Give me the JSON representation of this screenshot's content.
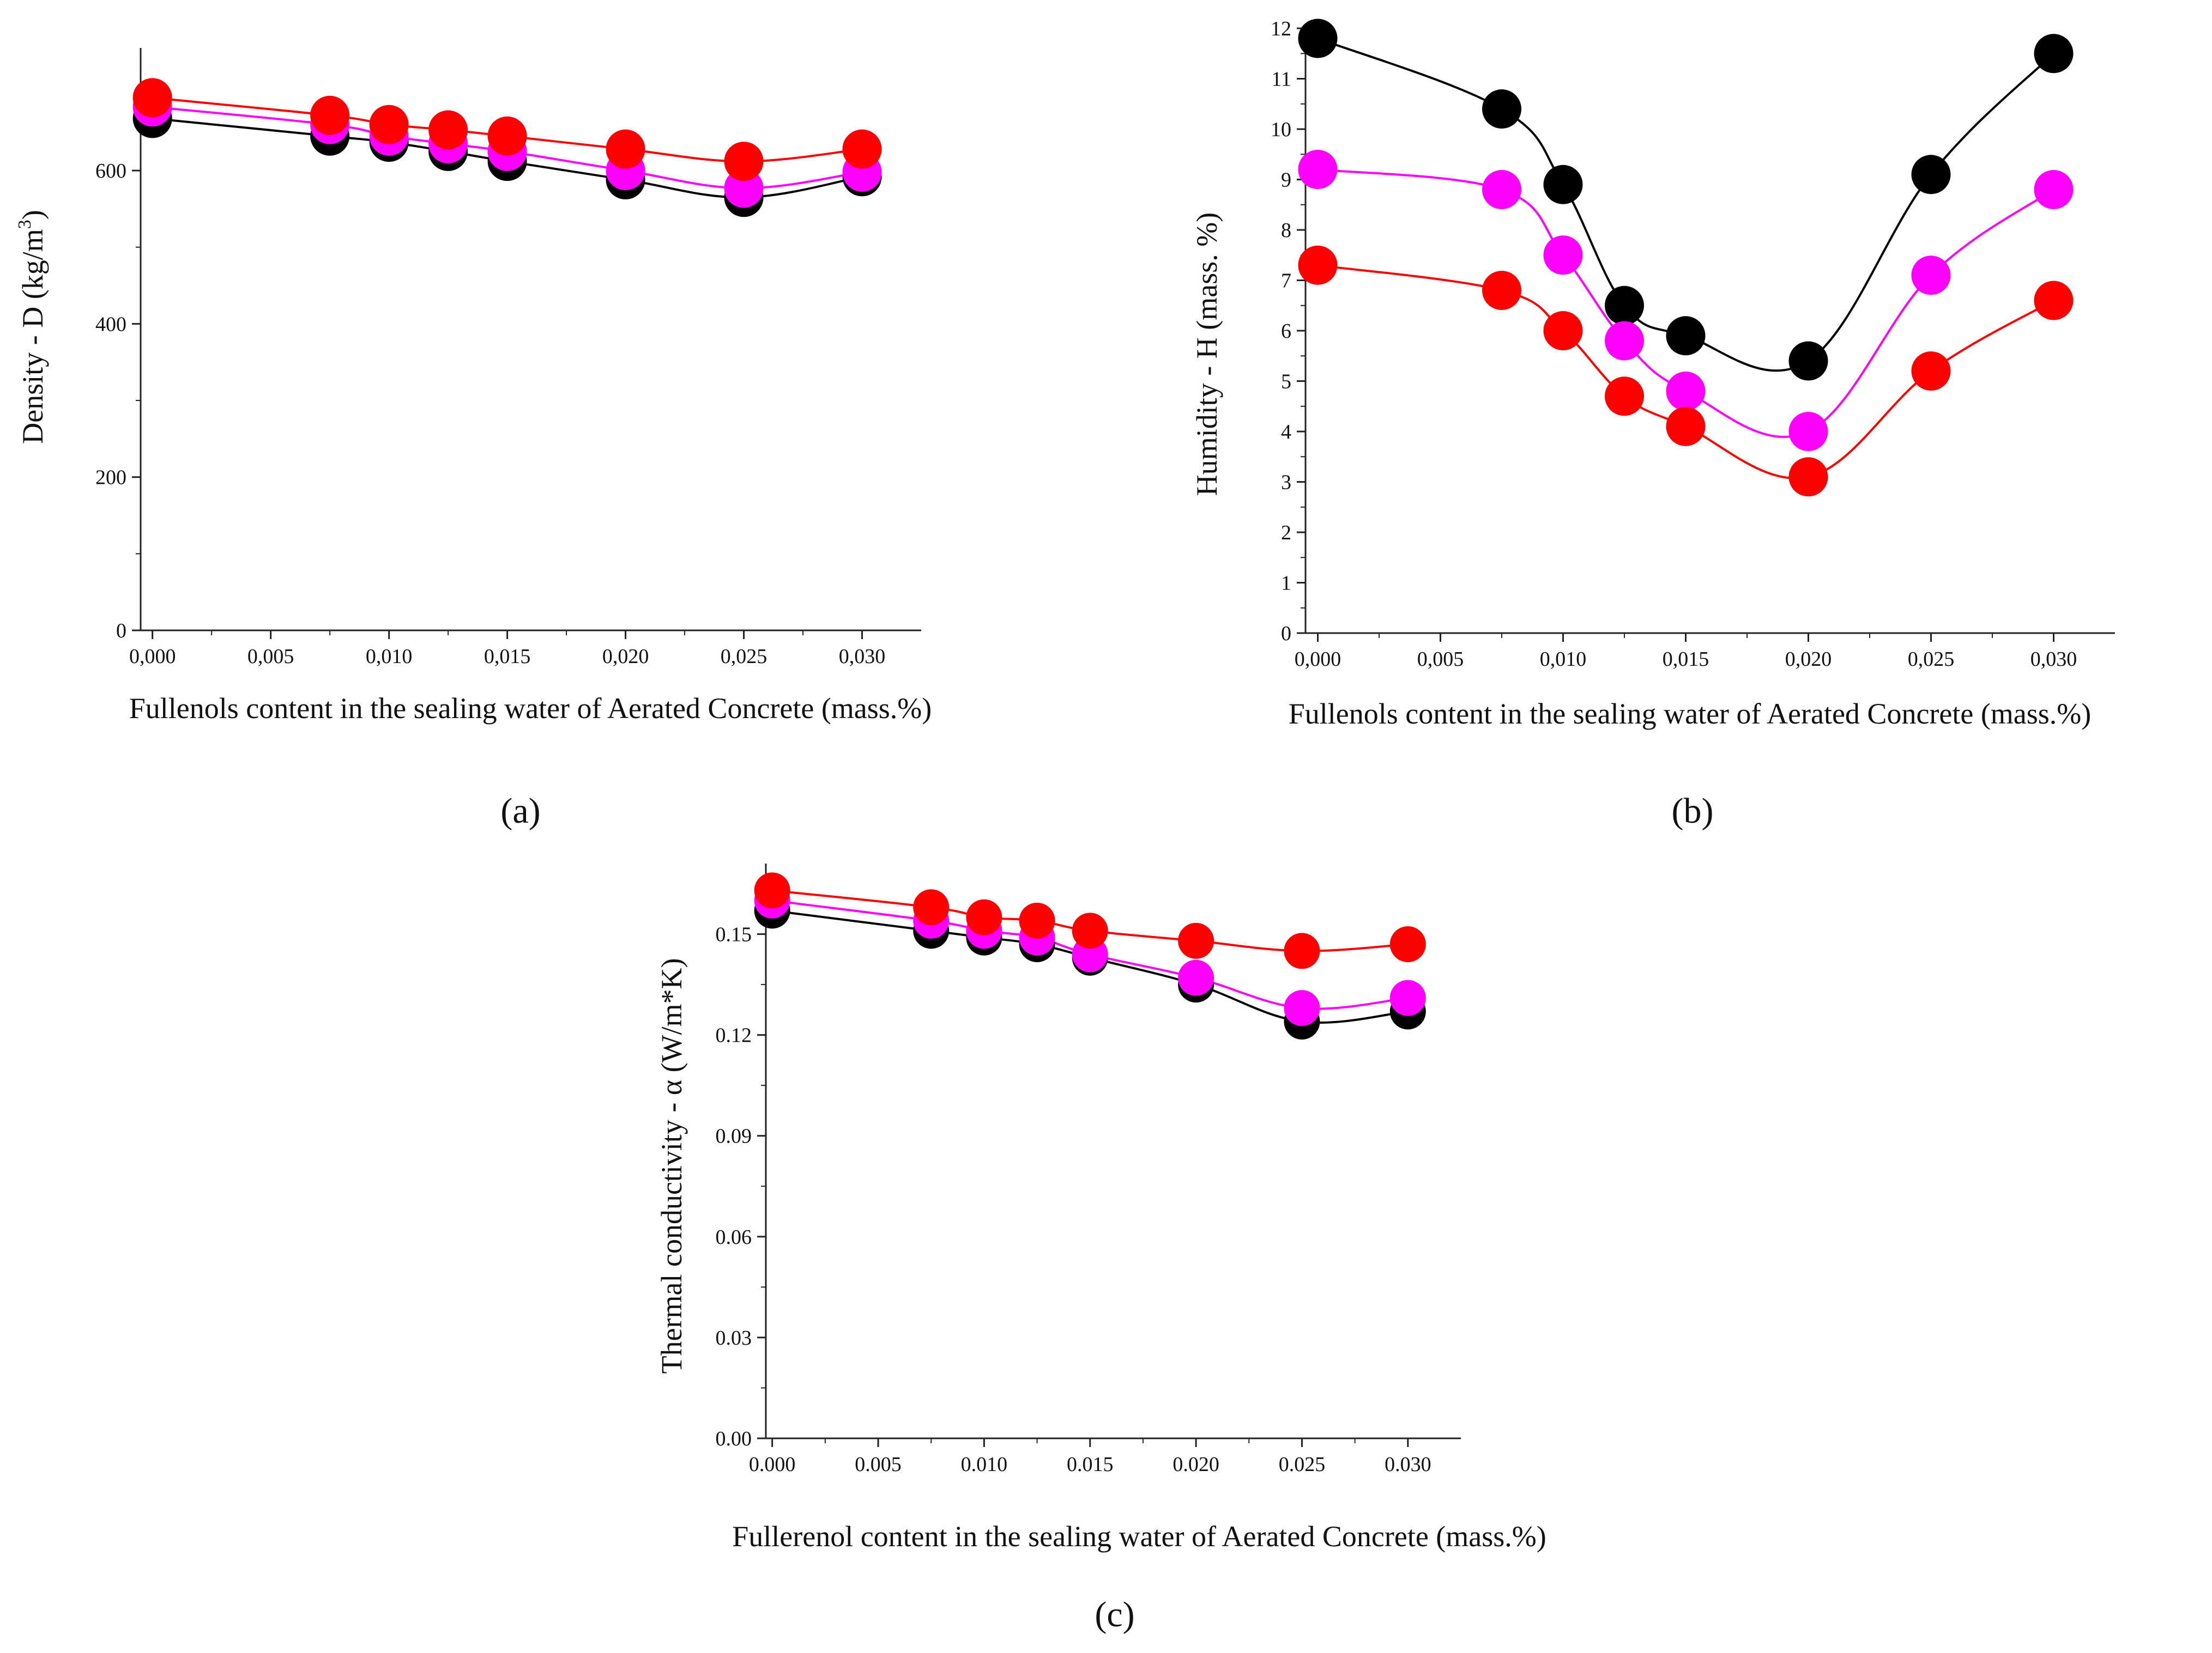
{
  "figure": {
    "caption_a": "(a)",
    "caption_b": "(b)",
    "caption_c": "(c)"
  },
  "series_colors": {
    "black": "#000000",
    "magenta": "#ff00ff",
    "red": "#ff0000"
  },
  "chart_data": [
    {
      "id": "a",
      "type": "line",
      "title": "",
      "xlabel": "Fullenols content in the sealing water of  Aerated Concrete (mass.%)",
      "ylabel": "Density - D (kg/m³)",
      "ylabel_main": "Density - D (kg/m",
      "ylabel_sup": "3",
      "ylabel_tail": ")",
      "xlim": [
        -0.0005,
        0.0325
      ],
      "ylim": [
        0,
        760
      ],
      "xticks": [
        0,
        0.005,
        0.01,
        0.015,
        0.02,
        0.025,
        0.03
      ],
      "xtick_labels": [
        "0,000",
        "0,005",
        "0,010",
        "0,015",
        "0,020",
        "0,025",
        "0,030"
      ],
      "yticks": [
        0,
        200,
        400,
        600
      ],
      "ytick_labels": [
        "0",
        "200",
        "400",
        "600"
      ],
      "x": [
        0,
        0.0075,
        0.01,
        0.0125,
        0.015,
        0.02,
        0.025,
        0.03
      ],
      "series": [
        {
          "name": "black",
          "color": "#000000",
          "values": [
            668,
            645,
            637,
            625,
            612,
            588,
            565,
            592
          ]
        },
        {
          "name": "magenta",
          "color": "#ff00ff",
          "values": [
            683,
            660,
            645,
            635,
            625,
            600,
            577,
            598
          ]
        },
        {
          "name": "red",
          "color": "#ff0000",
          "values": [
            695,
            672,
            660,
            653,
            645,
            628,
            612,
            628
          ]
        }
      ]
    },
    {
      "id": "b",
      "type": "line",
      "title": "",
      "xlabel": "Fullenols content in the sealing water of  Aerated Concrete (mass.%)",
      "ylabel": "Humidity - H (mass. %)",
      "xlim": [
        -0.0005,
        0.0325
      ],
      "ylim": [
        0,
        12
      ],
      "xticks": [
        0,
        0.005,
        0.01,
        0.015,
        0.02,
        0.025,
        0.03
      ],
      "xtick_labels": [
        "0,000",
        "0,005",
        "0,010",
        "0,015",
        "0,020",
        "0,025",
        "0,030"
      ],
      "yticks": [
        0,
        1,
        2,
        3,
        4,
        5,
        6,
        7,
        8,
        9,
        10,
        11,
        12
      ],
      "ytick_labels": [
        "0",
        "1",
        "2",
        "3",
        "4",
        "5",
        "6",
        "7",
        "8",
        "9",
        "10",
        "11",
        "12"
      ],
      "x": [
        0,
        0.0075,
        0.01,
        0.0125,
        0.015,
        0.02,
        0.025,
        0.03
      ],
      "series": [
        {
          "name": "black",
          "color": "#000000",
          "values": [
            11.8,
            10.4,
            8.9,
            6.5,
            5.9,
            5.4,
            9.1,
            11.5
          ]
        },
        {
          "name": "magenta",
          "color": "#ff00ff",
          "values": [
            9.2,
            8.8,
            7.5,
            5.8,
            4.8,
            4.0,
            7.1,
            8.8
          ]
        },
        {
          "name": "red",
          "color": "#ff0000",
          "values": [
            7.3,
            6.8,
            6.0,
            4.7,
            4.1,
            3.1,
            5.2,
            6.6
          ]
        }
      ]
    },
    {
      "id": "c",
      "type": "line",
      "title": "",
      "xlabel": "Fullerenol content in the sealing water of  Aerated Concrete (mass.%)",
      "ylabel": "Thermal conductivity - α (W/m*K)",
      "xlim": [
        -0.0003,
        0.0325
      ],
      "ylim": [
        0,
        0.171
      ],
      "xticks": [
        0,
        0.005,
        0.01,
        0.015,
        0.02,
        0.025,
        0.03
      ],
      "xtick_labels": [
        "0.000",
        "0.005",
        "0.010",
        "0.015",
        "0.020",
        "0.025",
        "0.030"
      ],
      "yticks": [
        0,
        0.03,
        0.06,
        0.09,
        0.12,
        0.15
      ],
      "ytick_labels": [
        "0.00",
        "0.03",
        "0.06",
        "0.09",
        "0.12",
        "0.15"
      ],
      "x": [
        0,
        0.0075,
        0.01,
        0.0125,
        0.015,
        0.02,
        0.025,
        0.03
      ],
      "series": [
        {
          "name": "black",
          "color": "#000000",
          "values": [
            0.157,
            0.151,
            0.149,
            0.147,
            0.143,
            0.135,
            0.124,
            0.127
          ]
        },
        {
          "name": "magenta",
          "color": "#ff00ff",
          "values": [
            0.16,
            0.154,
            0.151,
            0.149,
            0.144,
            0.137,
            0.128,
            0.131
          ]
        },
        {
          "name": "red",
          "color": "#ff0000",
          "values": [
            0.163,
            0.158,
            0.155,
            0.154,
            0.151,
            0.148,
            0.145,
            0.147
          ]
        }
      ]
    }
  ]
}
